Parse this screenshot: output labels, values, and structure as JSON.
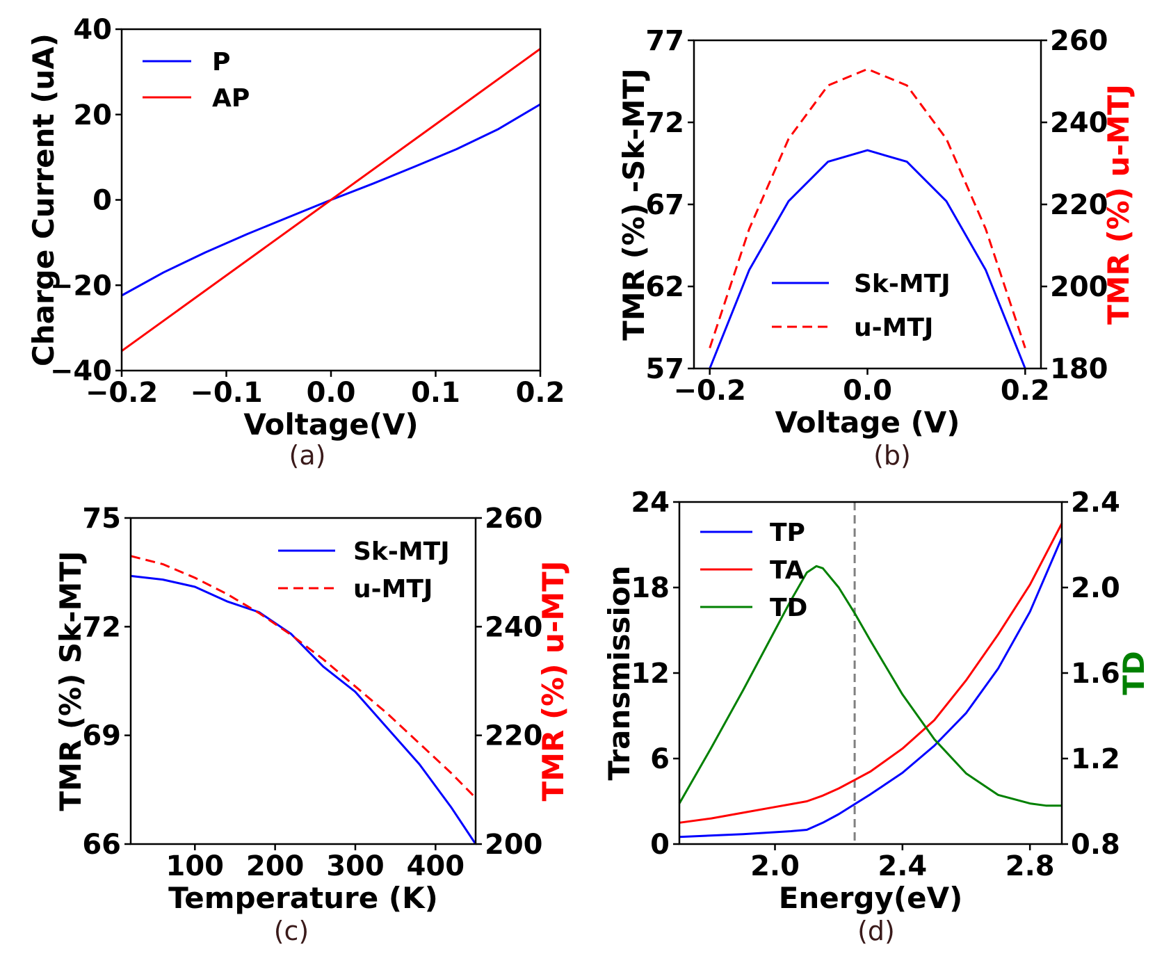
{
  "chart_data": [
    {
      "id": "a",
      "type": "line",
      "caption": "(a)",
      "xlabel": "Voltage(V)",
      "ylabel": "Charge Current (uA)",
      "xlim": [
        -0.2,
        0.2
      ],
      "ylim": [
        -40,
        40
      ],
      "xticks": [
        -0.2,
        -0.1,
        0.0,
        0.1,
        0.2
      ],
      "xtick_labels": [
        "−0.2",
        "−0.1",
        "0.0",
        "0.1",
        "0.2"
      ],
      "yticks": [
        -40,
        -20,
        0,
        20,
        40
      ],
      "ytick_labels": [
        "−40",
        "−20",
        "0",
        "20",
        "40"
      ],
      "legend_position": "top-left",
      "series": [
        {
          "name": "P",
          "color": "#0000ff",
          "dash": "solid",
          "x": [
            -0.2,
            -0.16,
            -0.12,
            -0.08,
            -0.04,
            0.0,
            0.04,
            0.08,
            0.12,
            0.16,
            0.2
          ],
          "y": [
            -22.4,
            -17,
            -12.3,
            -8,
            -4,
            0,
            3.8,
            7.8,
            11.9,
            16.6,
            22.4
          ]
        },
        {
          "name": "AP",
          "color": "#ff0000",
          "dash": "solid",
          "x": [
            -0.2,
            0.0,
            0.2
          ],
          "y": [
            -35.4,
            0,
            35.4
          ]
        }
      ]
    },
    {
      "id": "b",
      "type": "line",
      "caption": "(b)",
      "xlabel": "Voltage (V)",
      "ylabel": "TMR (%) -Sk-MTJ",
      "ylabel_right": "TMR (%) u-MTJ",
      "ylabel_right_color": "#ff0000",
      "xlim": [
        -0.22,
        0.22
      ],
      "ylim": [
        57,
        77
      ],
      "ylim_right": [
        180,
        260
      ],
      "xticks": [
        -0.2,
        0.0,
        0.2
      ],
      "xtick_labels": [
        "−0.2",
        "0.0",
        "0.2"
      ],
      "yticks": [
        57,
        62,
        67,
        72,
        77
      ],
      "ytick_labels": [
        "57",
        "62",
        "67",
        "72",
        "77"
      ],
      "yticks_right": [
        180,
        200,
        220,
        240,
        260
      ],
      "ytick_labels_right": [
        "180",
        "200",
        "220",
        "240",
        "260"
      ],
      "legend_position": "lower-center",
      "series": [
        {
          "name": "Sk-MTJ",
          "color": "#0000ff",
          "dash": "solid",
          "axis": "left",
          "x": [
            -0.2,
            -0.15,
            -0.1,
            -0.05,
            0.0,
            0.05,
            0.1,
            0.15,
            0.2
          ],
          "y": [
            57.0,
            63.0,
            67.2,
            69.6,
            70.3,
            69.6,
            67.2,
            63.0,
            57.0
          ]
        },
        {
          "name": "u-MTJ",
          "color": "#ff0000",
          "dash": "dashed",
          "axis": "right",
          "x": [
            -0.2,
            -0.15,
            -0.1,
            -0.05,
            0.0,
            0.05,
            0.1,
            0.15,
            0.2
          ],
          "y": [
            185,
            214,
            236,
            249,
            253,
            249,
            236,
            214,
            185
          ]
        }
      ]
    },
    {
      "id": "c",
      "type": "line",
      "caption": "(c)",
      "xlabel": "Temperature (K)",
      "ylabel": "TMR (%) Sk-MTJ",
      "ylabel_right": "TMR (%) u-MTJ",
      "ylabel_right_color": "#ff0000",
      "xlim": [
        20,
        450
      ],
      "ylim": [
        66,
        75
      ],
      "ylim_right": [
        200,
        260
      ],
      "xticks": [
        100,
        200,
        300,
        400
      ],
      "xtick_labels": [
        "100",
        "200",
        "300",
        "400"
      ],
      "yticks": [
        66,
        69,
        72,
        75
      ],
      "ytick_labels": [
        "66",
        "69",
        "72",
        "75"
      ],
      "yticks_right": [
        200,
        220,
        240,
        260
      ],
      "ytick_labels_right": [
        "200",
        "220",
        "240",
        "260"
      ],
      "legend_position": "top-right",
      "series": [
        {
          "name": "Sk-MTJ",
          "color": "#0000ff",
          "dash": "solid",
          "axis": "left",
          "x": [
            20,
            60,
            100,
            140,
            180,
            220,
            260,
            300,
            340,
            380,
            420,
            450
          ],
          "y": [
            73.4,
            73.3,
            73.1,
            72.7,
            72.4,
            71.8,
            70.9,
            70.2,
            69.2,
            68.2,
            67.0,
            66.0
          ]
        },
        {
          "name": "u-MTJ",
          "color": "#ff0000",
          "dash": "dashed",
          "axis": "right",
          "x": [
            20,
            60,
            100,
            140,
            180,
            220,
            260,
            300,
            340,
            380,
            420,
            450
          ],
          "y": [
            253,
            251.5,
            249,
            246,
            242.5,
            238.5,
            234,
            229,
            224,
            218.5,
            213,
            208.5
          ]
        }
      ]
    },
    {
      "id": "d",
      "type": "line",
      "caption": "(d)",
      "xlabel": "Energy(eV)",
      "ylabel": "Transmission",
      "ylabel_right": "TD",
      "ylabel_right_color": "#008000",
      "xlim": [
        1.7,
        2.9
      ],
      "ylim": [
        0,
        24
      ],
      "ylim_right": [
        0.8,
        2.4
      ],
      "xticks": [
        2.0,
        2.4,
        2.8
      ],
      "xtick_labels": [
        "2.0",
        "2.4",
        "2.8"
      ],
      "yticks": [
        0,
        6,
        12,
        18,
        24
      ],
      "ytick_labels": [
        "0",
        "6",
        "12",
        "18",
        "24"
      ],
      "yticks_right": [
        0.8,
        1.2,
        1.6,
        2.0,
        2.4
      ],
      "ytick_labels_right": [
        "0.8",
        "1.2",
        "1.6",
        "2.0",
        "2.4"
      ],
      "vline_x": 2.25,
      "legend_position": "top-left",
      "series": [
        {
          "name": "TP",
          "color": "#0000ff",
          "dash": "solid",
          "axis": "left",
          "x": [
            1.7,
            1.9,
            2.05,
            2.1,
            2.15,
            2.2,
            2.25,
            2.3,
            2.4,
            2.5,
            2.6,
            2.7,
            2.8,
            2.9
          ],
          "y": [
            0.5,
            0.7,
            0.9,
            1.0,
            1.5,
            2.1,
            2.8,
            3.5,
            5.0,
            6.9,
            9.2,
            12.3,
            16.3,
            21.5
          ]
        },
        {
          "name": "TA",
          "color": "#ff0000",
          "dash": "solid",
          "axis": "left",
          "x": [
            1.7,
            1.8,
            1.9,
            2.0,
            2.1,
            2.15,
            2.2,
            2.25,
            2.3,
            2.4,
            2.5,
            2.6,
            2.7,
            2.8,
            2.9
          ],
          "y": [
            1.5,
            1.8,
            2.2,
            2.6,
            3.0,
            3.4,
            3.9,
            4.5,
            5.1,
            6.7,
            8.7,
            11.5,
            14.7,
            18.2,
            22.5
          ]
        },
        {
          "name": "TD",
          "color": "#008000",
          "dash": "solid",
          "axis": "right",
          "x": [
            1.7,
            1.8,
            1.9,
            2.0,
            2.05,
            2.1,
            2.13,
            2.15,
            2.2,
            2.25,
            2.3,
            2.4,
            2.5,
            2.6,
            2.7,
            2.8,
            2.85,
            2.9
          ],
          "y": [
            0.99,
            1.25,
            1.52,
            1.8,
            1.94,
            2.07,
            2.1,
            2.09,
            2.0,
            1.88,
            1.75,
            1.5,
            1.29,
            1.13,
            1.03,
            0.99,
            0.98,
            0.98
          ]
        }
      ]
    }
  ]
}
